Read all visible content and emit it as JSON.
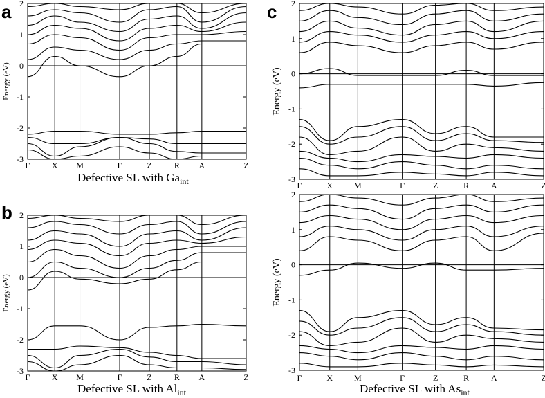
{
  "figure": {
    "kpoint_labels": [
      "Γ",
      "X",
      "M",
      "Γ",
      "Z",
      "R",
      "A",
      "Z"
    ],
    "y_tick_labels": [
      "2",
      "1",
      "0",
      "-1",
      "-2",
      "-3"
    ]
  },
  "chart_data": [
    {
      "panel": "a",
      "type": "line",
      "caption_main": "Defective SL with Ga",
      "caption_sub": "int",
      "ylabel": "Energy (eV)",
      "ylim": [
        -3,
        2
      ],
      "x": [
        "Γ",
        "X",
        "M",
        "Γ",
        "Z",
        "R",
        "A",
        "Z"
      ],
      "fermi_level": 0,
      "defect_levels": [
        {
          "name": "gap-state",
          "values": [
            0.0,
            0.0,
            0.0,
            0.0,
            0.0,
            0.0,
            0.0,
            0.0
          ]
        }
      ],
      "valence_top": [
        {
          "values": [
            -2.2,
            -2.1,
            -2.1,
            -2.2,
            -2.2,
            -2.15,
            -2.1,
            -2.1
          ]
        },
        {
          "values": [
            -2.3,
            -2.5,
            -2.5,
            -2.3,
            -2.35,
            -2.5,
            -2.5,
            -2.5
          ]
        },
        {
          "values": [
            -2.5,
            -2.9,
            -2.6,
            -2.3,
            -2.5,
            -2.75,
            -2.8,
            -2.8
          ]
        },
        {
          "values": [
            -2.7,
            -3.0,
            -2.9,
            -2.6,
            -2.8,
            -3.0,
            -2.9,
            -2.9
          ]
        }
      ],
      "conduction": [
        {
          "values": [
            -0.35,
            0.3,
            0.0,
            -0.35,
            0.0,
            0.3,
            0.7,
            0.7
          ]
        },
        {
          "values": [
            0.2,
            0.6,
            0.5,
            0.2,
            0.5,
            0.7,
            0.8,
            0.8
          ]
        },
        {
          "values": [
            0.7,
            1.0,
            0.9,
            0.5,
            0.9,
            1.0,
            1.0,
            1.1
          ]
        },
        {
          "values": [
            1.0,
            1.3,
            1.2,
            0.8,
            1.2,
            1.3,
            1.1,
            1.4
          ]
        },
        {
          "values": [
            1.3,
            1.6,
            1.4,
            1.1,
            1.5,
            1.6,
            1.2,
            1.7
          ]
        },
        {
          "values": [
            1.6,
            1.8,
            1.7,
            1.4,
            1.8,
            1.9,
            1.4,
            1.9
          ]
        },
        {
          "values": [
            1.9,
            2.0,
            1.9,
            1.8,
            2.0,
            2.0,
            1.7,
            2.0
          ]
        }
      ]
    },
    {
      "panel": "b",
      "type": "line",
      "caption_main": "Defective SL with Al",
      "caption_sub": "int",
      "ylabel": "Energy (eV)",
      "ylim": [
        -3,
        2
      ],
      "x": [
        "Γ",
        "X",
        "M",
        "Γ",
        "Z",
        "R",
        "A",
        "Z"
      ],
      "fermi_level": 0,
      "defect_levels": [
        {
          "name": "gap-state",
          "values": [
            -2.0,
            -1.55,
            -1.55,
            -2.0,
            -1.6,
            -1.55,
            -1.5,
            -1.55
          ]
        }
      ],
      "valence_top": [
        {
          "values": [
            -2.3,
            -2.3,
            -2.2,
            -2.25,
            -2.4,
            -2.5,
            -2.6,
            -2.6
          ]
        },
        {
          "values": [
            -2.5,
            -2.9,
            -2.5,
            -2.3,
            -2.55,
            -2.7,
            -2.7,
            -2.8
          ]
        },
        {
          "values": [
            -2.7,
            -3.0,
            -2.8,
            -2.5,
            -2.8,
            -2.9,
            -2.9,
            -2.95
          ]
        }
      ],
      "conduction": [
        {
          "values": [
            -0.4,
            0.2,
            -0.05,
            -0.2,
            -0.05,
            0.25,
            0.5,
            0.5
          ]
        },
        {
          "values": [
            0.0,
            0.5,
            0.3,
            0.0,
            0.3,
            0.55,
            0.8,
            0.8
          ]
        },
        {
          "values": [
            0.5,
            0.9,
            0.7,
            0.3,
            0.7,
            0.9,
            1.0,
            1.0
          ]
        },
        {
          "values": [
            0.9,
            1.2,
            1.1,
            0.7,
            1.1,
            1.2,
            1.1,
            1.3
          ]
        },
        {
          "values": [
            1.2,
            1.5,
            1.4,
            1.0,
            1.4,
            1.5,
            1.2,
            1.6
          ]
        },
        {
          "values": [
            1.6,
            1.8,
            1.7,
            1.4,
            1.7,
            1.8,
            1.4,
            1.8
          ]
        },
        {
          "values": [
            1.9,
            2.0,
            1.9,
            1.8,
            2.0,
            2.0,
            1.7,
            2.0
          ]
        }
      ]
    },
    {
      "panel": "c-top",
      "type": "line",
      "caption_main": "",
      "caption_sub": "",
      "ylabel": "Energy (eV)",
      "ylim": [
        -3,
        2
      ],
      "x": [
        "Γ",
        "X",
        "M",
        "Γ",
        "Z",
        "R",
        "A",
        "Z"
      ],
      "fermi_level": 0,
      "defect_levels": [
        {
          "name": "gap-state-1",
          "values": [
            0.0,
            0.15,
            -0.05,
            -0.05,
            -0.05,
            0.1,
            -0.05,
            -0.05
          ]
        },
        {
          "name": "gap-state-2",
          "values": [
            -0.4,
            -0.3,
            -0.3,
            -0.3,
            -0.3,
            -0.3,
            -0.35,
            -0.25
          ]
        }
      ],
      "valence_top": [
        {
          "values": [
            -1.3,
            -1.9,
            -1.5,
            -1.3,
            -1.7,
            -1.5,
            -1.8,
            -1.8
          ]
        },
        {
          "values": [
            -1.5,
            -2.0,
            -1.8,
            -1.5,
            -1.9,
            -1.7,
            -1.9,
            -1.95
          ]
        },
        {
          "values": [
            -1.8,
            -2.3,
            -2.2,
            -1.8,
            -2.2,
            -2.0,
            -2.1,
            -2.2
          ]
        },
        {
          "values": [
            -2.2,
            -2.4,
            -2.5,
            -2.3,
            -2.35,
            -2.4,
            -2.3,
            -2.4
          ]
        },
        {
          "values": [
            -2.4,
            -2.6,
            -2.7,
            -2.5,
            -2.6,
            -2.7,
            -2.6,
            -2.7
          ]
        },
        {
          "values": [
            -2.7,
            -2.9,
            -2.9,
            -2.8,
            -2.85,
            -2.9,
            -2.8,
            -2.9
          ]
        }
      ],
      "conduction": [
        {
          "values": [
            0.6,
            0.9,
            0.8,
            0.6,
            0.8,
            0.9,
            0.7,
            0.9
          ]
        },
        {
          "values": [
            0.9,
            1.2,
            1.1,
            0.9,
            1.1,
            1.2,
            1.0,
            1.2
          ]
        },
        {
          "values": [
            1.2,
            1.5,
            1.3,
            1.1,
            1.4,
            1.5,
            1.2,
            1.5
          ]
        },
        {
          "values": [
            1.5,
            1.8,
            1.6,
            1.4,
            1.7,
            1.8,
            1.5,
            1.7
          ]
        },
        {
          "values": [
            1.8,
            2.0,
            1.9,
            1.7,
            1.95,
            2.0,
            1.8,
            1.9
          ]
        }
      ]
    },
    {
      "panel": "c-bottom",
      "type": "line",
      "caption_main": "Defective SL with As",
      "caption_sub": "int",
      "ylabel": "Energy (eV)",
      "ylim": [
        -3,
        2
      ],
      "x": [
        "Γ",
        "X",
        "M",
        "Γ",
        "Z",
        "R",
        "A",
        "Z"
      ],
      "fermi_level": 0,
      "defect_levels": [
        {
          "name": "gap-state-1",
          "values": [
            -0.3,
            -0.15,
            0.05,
            -0.1,
            0.05,
            -0.15,
            -0.15,
            -0.1
          ]
        }
      ],
      "valence_top": [
        {
          "values": [
            -1.3,
            -1.9,
            -1.5,
            -1.3,
            -1.7,
            -1.5,
            -1.8,
            -1.85
          ]
        },
        {
          "values": [
            -1.6,
            -2.0,
            -1.8,
            -1.5,
            -1.9,
            -1.7,
            -1.9,
            -2.0
          ]
        },
        {
          "values": [
            -1.9,
            -2.3,
            -2.2,
            -1.8,
            -2.2,
            -2.0,
            -2.1,
            -2.2
          ]
        },
        {
          "values": [
            -2.3,
            -2.4,
            -2.5,
            -2.3,
            -2.35,
            -2.4,
            -2.3,
            -2.4
          ]
        },
        {
          "values": [
            -2.5,
            -2.6,
            -2.7,
            -2.5,
            -2.6,
            -2.7,
            -2.6,
            -2.7
          ]
        },
        {
          "values": [
            -2.8,
            -2.9,
            -2.9,
            -2.8,
            -2.85,
            -2.9,
            -2.85,
            -2.9
          ]
        }
      ],
      "conduction": [
        {
          "values": [
            0.4,
            0.8,
            0.7,
            0.4,
            0.7,
            0.8,
            0.4,
            0.9
          ]
        },
        {
          "values": [
            0.8,
            1.1,
            1.0,
            0.7,
            1.0,
            1.1,
            0.8,
            1.1
          ]
        },
        {
          "values": [
            1.2,
            1.4,
            1.3,
            1.0,
            1.3,
            1.4,
            1.2,
            1.4
          ]
        },
        {
          "values": [
            1.5,
            1.7,
            1.6,
            1.3,
            1.6,
            1.7,
            1.5,
            1.7
          ]
        },
        {
          "values": [
            1.8,
            2.0,
            1.9,
            1.7,
            1.9,
            2.0,
            1.8,
            1.9
          ]
        }
      ]
    }
  ],
  "panels": {
    "a": {
      "letter": "a"
    },
    "b": {
      "letter": "b"
    },
    "c": {
      "letter": "c"
    }
  }
}
